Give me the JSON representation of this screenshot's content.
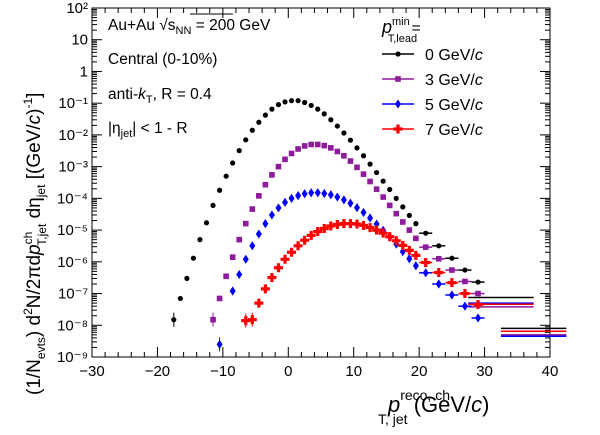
{
  "chart_data": {
    "type": "scatter",
    "scale": {
      "x": "linear",
      "y": "log"
    },
    "xlim": [
      -30,
      40
    ],
    "ylim": [
      1e-09,
      100
    ],
    "xticks": [
      "−30",
      "−20",
      "−10",
      "0",
      "10",
      "20",
      "30",
      "40"
    ],
    "yticks": [
      "10⁻⁹",
      "10⁻⁸",
      "10⁻⁷",
      "10⁻⁶",
      "10⁻⁵",
      "10⁻⁴",
      "10⁻³",
      "10⁻²",
      "10⁻¹",
      "1",
      "10",
      "10²"
    ],
    "xlabel": {
      "base": "p",
      "sup": "reco, ch",
      "sub": "T, jet",
      "unit_open": " (GeV/",
      "unit_c": "c",
      "unit_close": ")"
    },
    "ylabel": {
      "t1": "(1/N",
      "t2": "evts",
      "t3": ") d",
      "t4": "2",
      "t5": "N/2πd",
      "t6": "p",
      "t7": "ch",
      "t8": "T,jet",
      "t9": " dη",
      "t10": "jet",
      "t11": " [(GeV/",
      "t12": "c",
      "t13": ")",
      "t14": "-1",
      "t15": "]"
    },
    "annotations": {
      "system_a": "Au+Au ",
      "system_sqrt": "√",
      "system_s": "s",
      "system_nn": "NN",
      "system_b": " = 200 GeV",
      "centrality": "Central (0-10%)",
      "algo_a": "anti-",
      "algo_k": "k",
      "algo_t": "T",
      "algo_b": ", R = 0.4",
      "eta_a": "|η",
      "eta_sub": "jet",
      "eta_b": "| < 1 - R"
    },
    "legend": {
      "p": "p",
      "sup": "min",
      "sub": "T,lead",
      "eq": " =",
      "placement": "top-right"
    },
    "series": [
      {
        "name": "0 GeV/",
        "name_c": "c",
        "color": "#000000",
        "marker": "circle",
        "points": [
          [
            -17.5,
            1.5e-08
          ],
          [
            -16.5,
            7e-08
          ],
          [
            -15.5,
            3e-07
          ],
          [
            -14.5,
            1.3e-06
          ],
          [
            -13.5,
            5e-06
          ],
          [
            -12.5,
            1.7e-05
          ],
          [
            -11.5,
            6e-05
          ],
          [
            -10.5,
            0.00018
          ],
          [
            -9.5,
            0.0005
          ],
          [
            -8.5,
            0.0013
          ],
          [
            -7.5,
            0.0032
          ],
          [
            -6.5,
            0.007
          ],
          [
            -5.5,
            0.014
          ],
          [
            -4.5,
            0.025
          ],
          [
            -3.5,
            0.042
          ],
          [
            -2.5,
            0.065
          ],
          [
            -1.5,
            0.09
          ],
          [
            -0.5,
            0.11
          ],
          [
            0.5,
            0.12
          ],
          [
            1.5,
            0.12
          ],
          [
            2.5,
            0.105
          ],
          [
            3.5,
            0.085
          ],
          [
            4.5,
            0.065
          ],
          [
            5.5,
            0.046
          ],
          [
            6.5,
            0.03
          ],
          [
            7.5,
            0.019
          ],
          [
            8.5,
            0.0115
          ],
          [
            9.5,
            0.0068
          ],
          [
            10.5,
            0.0039
          ],
          [
            11.5,
            0.0022
          ],
          [
            12.5,
            0.0012
          ],
          [
            13.5,
            0.00065
          ],
          [
            14.5,
            0.00035
          ],
          [
            15.5,
            0.00019
          ],
          [
            16.5,
            0.0001
          ],
          [
            17.5,
            5.4e-05
          ],
          [
            18.5,
            2.9e-05
          ],
          [
            19.5,
            1.6e-05
          ],
          [
            21,
            8e-06
          ],
          [
            23,
            3.2e-06
          ],
          [
            25,
            1.3e-06
          ],
          [
            27,
            5.5e-07
          ],
          [
            29,
            2.3e-07
          ],
          [
            32.5,
            7.5e-08
          ],
          [
            37.5,
            8e-09
          ]
        ]
      },
      {
        "name": "3 GeV/",
        "name_c": "c",
        "color": "#8e1a9c",
        "marker": "square",
        "points": [
          [
            -11.5,
            1.5e-08
          ],
          [
            -10.5,
            7e-08
          ],
          [
            -9.5,
            3.5e-07
          ],
          [
            -8.5,
            1.4e-06
          ],
          [
            -7.5,
            5e-06
          ],
          [
            -6.5,
            1.6e-05
          ],
          [
            -5.5,
            4.6e-05
          ],
          [
            -4.5,
            0.00012
          ],
          [
            -3.5,
            0.00027
          ],
          [
            -2.5,
            0.00055
          ],
          [
            -1.5,
            0.001
          ],
          [
            -0.5,
            0.0017
          ],
          [
            0.5,
            0.0026
          ],
          [
            1.5,
            0.0036
          ],
          [
            2.5,
            0.0045
          ],
          [
            3.5,
            0.005
          ],
          [
            4.5,
            0.005
          ],
          [
            5.5,
            0.0046
          ],
          [
            6.5,
            0.0039
          ],
          [
            7.5,
            0.003
          ],
          [
            8.5,
            0.0022
          ],
          [
            9.5,
            0.0015
          ],
          [
            10.5,
            0.00095
          ],
          [
            11.5,
            0.00058
          ],
          [
            12.5,
            0.00034
          ],
          [
            13.5,
            0.000195
          ],
          [
            14.5,
            0.00011
          ],
          [
            15.5,
            6e-05
          ],
          [
            16.5,
            3.3e-05
          ],
          [
            17.5,
            1.8e-05
          ],
          [
            18.5,
            1e-05
          ],
          [
            19.5,
            5.5e-06
          ],
          [
            21,
            2.9e-06
          ],
          [
            23,
            1.25e-06
          ],
          [
            25,
            5.5e-07
          ],
          [
            27,
            2.4e-07
          ],
          [
            29,
            1e-07
          ],
          [
            32.5,
            3.8e-08
          ],
          [
            37.5,
            5e-09
          ]
        ]
      },
      {
        "name": "5 GeV/",
        "name_c": "c",
        "color": "#0000ff",
        "marker": "diamond",
        "points": [
          [
            -10.5,
            2.5e-09
          ],
          [
            -8.5,
            1.2e-07
          ],
          [
            -7.5,
            4e-07
          ],
          [
            -6.5,
            1.2e-06
          ],
          [
            -5.5,
            3.2e-06
          ],
          [
            -4.5,
            7.5e-06
          ],
          [
            -3.5,
            1.6e-05
          ],
          [
            -2.5,
            3e-05
          ],
          [
            -1.5,
            5e-05
          ],
          [
            -0.5,
            7.5e-05
          ],
          [
            0.5,
            0.0001
          ],
          [
            1.5,
            0.000122
          ],
          [
            2.5,
            0.00014
          ],
          [
            3.5,
            0.00015
          ],
          [
            4.5,
            0.00015
          ],
          [
            5.5,
            0.000142
          ],
          [
            6.5,
            0.00013
          ],
          [
            7.5,
            0.00011
          ],
          [
            8.5,
            9e-05
          ],
          [
            9.5,
            7e-05
          ],
          [
            10.5,
            5.1e-05
          ],
          [
            11.5,
            3.6e-05
          ],
          [
            12.5,
            2.4e-05
          ],
          [
            13.5,
            1.55e-05
          ],
          [
            14.5,
            9.8e-06
          ],
          [
            15.5,
            6e-06
          ],
          [
            16.5,
            3.6e-06
          ],
          [
            17.5,
            2.1e-06
          ],
          [
            18.5,
            1.25e-06
          ],
          [
            19.5,
            7.5e-07
          ],
          [
            21,
            4.5e-07
          ],
          [
            23,
            2e-07
          ],
          [
            25,
            9e-08
          ],
          [
            27,
            4e-08
          ],
          [
            29,
            1.7e-08
          ],
          [
            32.5,
            5e-08
          ],
          [
            37.5,
            4.5e-09
          ]
        ]
      },
      {
        "name": "7 GeV/",
        "name_c": "c",
        "color": "#ff0000",
        "marker": "cross",
        "points": [
          [
            -6.5,
            1.4e-08
          ],
          [
            -5.5,
            1.5e-08
          ],
          [
            -4.5,
            5e-08
          ],
          [
            -3.5,
            1.4e-07
          ],
          [
            -2.5,
            3.2e-07
          ],
          [
            -1.5,
            6.5e-07
          ],
          [
            -0.5,
            1.2e-06
          ],
          [
            0.5,
            2e-06
          ],
          [
            1.5,
            3.2e-06
          ],
          [
            2.5,
            4.8e-06
          ],
          [
            3.5,
            6.8e-06
          ],
          [
            4.5,
            9e-06
          ],
          [
            5.5,
            1.12e-05
          ],
          [
            6.5,
            1.35e-05
          ],
          [
            7.5,
            1.5e-05
          ],
          [
            8.5,
            1.6e-05
          ],
          [
            9.5,
            1.6e-05
          ],
          [
            10.5,
            1.55e-05
          ],
          [
            11.5,
            1.4e-05
          ],
          [
            12.5,
            1.2e-05
          ],
          [
            13.5,
            1e-05
          ],
          [
            14.5,
            8e-06
          ],
          [
            15.5,
            6.2e-06
          ],
          [
            16.5,
            4.6e-06
          ],
          [
            17.5,
            3.3e-06
          ],
          [
            18.5,
            2.3e-06
          ],
          [
            19.5,
            1.6e-06
          ],
          [
            21,
            9.5e-07
          ],
          [
            23,
            4.6e-07
          ],
          [
            25,
            2.2e-07
          ],
          [
            27,
            1e-07
          ],
          [
            29,
            4.5e-08
          ],
          [
            32.5,
            4.6e-08
          ],
          [
            37.5,
            6.5e-09
          ]
        ]
      }
    ]
  }
}
